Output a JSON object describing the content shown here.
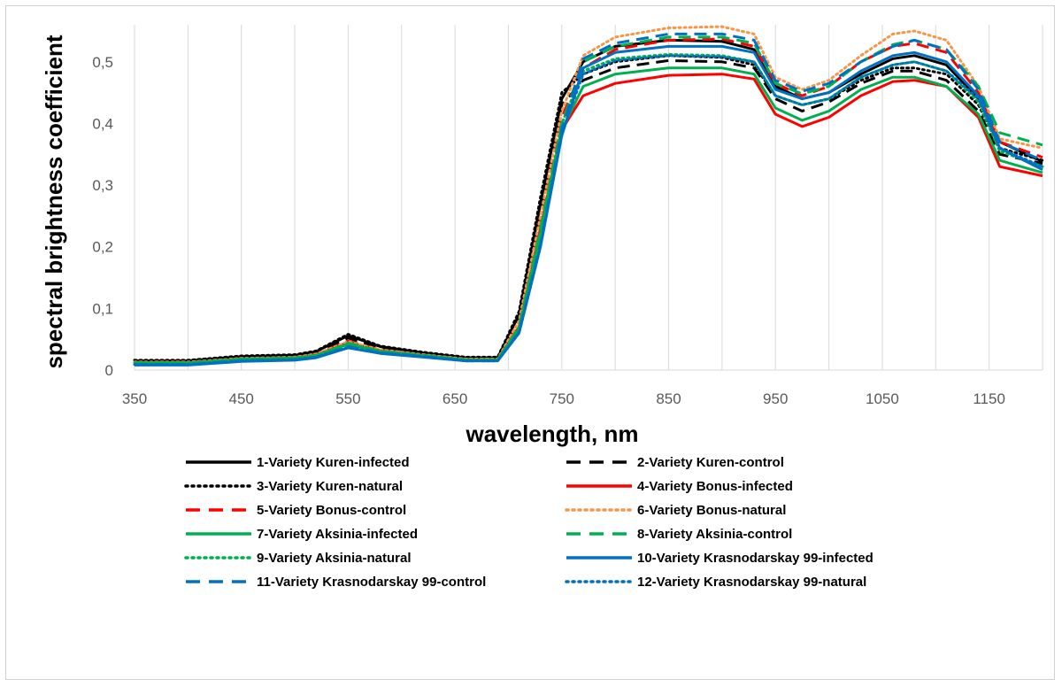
{
  "chart_data": {
    "type": "line",
    "xlabel": "wavelength, nm",
    "ylabel": "spectral brightness coefficient",
    "xlim": [
      350,
      1200
    ],
    "ylim": [
      0,
      0.56
    ],
    "x_ticks": [
      "350",
      "450",
      "550",
      "650",
      "750",
      "850",
      "950",
      "1050",
      "1150"
    ],
    "x_tick_values": [
      350,
      450,
      550,
      650,
      750,
      850,
      950,
      1050,
      1150
    ],
    "y_ticks": [
      "0",
      "0,1",
      "0,2",
      "0,3",
      "0,4",
      "0,5"
    ],
    "y_tick_values": [
      0,
      0.1,
      0.2,
      0.3,
      0.4,
      0.5
    ],
    "grid": "vertical",
    "legend_position": "bottom",
    "x": [
      350,
      400,
      450,
      500,
      520,
      550,
      580,
      620,
      660,
      690,
      710,
      730,
      750,
      770,
      800,
      850,
      900,
      930,
      950,
      975,
      1000,
      1030,
      1060,
      1080,
      1110,
      1140,
      1160,
      1200
    ],
    "series": [
      {
        "name": "1-Variety Kuren-infected",
        "color": "#000000",
        "dash": "solid",
        "values": [
          0.015,
          0.015,
          0.022,
          0.024,
          0.03,
          0.056,
          0.038,
          0.028,
          0.02,
          0.02,
          0.09,
          0.27,
          0.44,
          0.5,
          0.525,
          0.535,
          0.533,
          0.52,
          0.46,
          0.44,
          0.45,
          0.48,
          0.505,
          0.51,
          0.495,
          0.44,
          0.37,
          0.338
        ]
      },
      {
        "name": "2-Variety Kuren-control",
        "color": "#000000",
        "dash": "dash",
        "values": [
          0.014,
          0.014,
          0.021,
          0.023,
          0.029,
          0.052,
          0.036,
          0.027,
          0.019,
          0.019,
          0.085,
          0.26,
          0.43,
          0.47,
          0.49,
          0.502,
          0.5,
          0.49,
          0.44,
          0.42,
          0.435,
          0.465,
          0.485,
          0.485,
          0.47,
          0.42,
          0.35,
          0.335
        ]
      },
      {
        "name": "3-Variety Kuren-natural",
        "color": "#000000",
        "dash": "dot",
        "values": [
          0.016,
          0.016,
          0.023,
          0.025,
          0.031,
          0.058,
          0.039,
          0.029,
          0.021,
          0.021,
          0.095,
          0.28,
          0.45,
          0.48,
          0.5,
          0.51,
          0.507,
          0.495,
          0.445,
          0.43,
          0.44,
          0.47,
          0.49,
          0.49,
          0.48,
          0.43,
          0.36,
          0.34
        ]
      },
      {
        "name": "4-Variety Bonus-infected",
        "color": "#ff0000",
        "dash": "solid",
        "values": [
          0.012,
          0.012,
          0.018,
          0.02,
          0.025,
          0.045,
          0.032,
          0.024,
          0.017,
          0.017,
          0.07,
          0.23,
          0.39,
          0.445,
          0.465,
          0.478,
          0.48,
          0.472,
          0.415,
          0.395,
          0.41,
          0.445,
          0.468,
          0.47,
          0.46,
          0.41,
          0.33,
          0.315
        ]
      },
      {
        "name": "5-Variety Bonus-control",
        "color": "#ff0000",
        "dash": "dash",
        "values": [
          0.013,
          0.013,
          0.019,
          0.021,
          0.026,
          0.047,
          0.033,
          0.025,
          0.018,
          0.018,
          0.075,
          0.24,
          0.41,
          0.49,
          0.52,
          0.535,
          0.537,
          0.525,
          0.465,
          0.445,
          0.46,
          0.5,
          0.525,
          0.53,
          0.515,
          0.45,
          0.37,
          0.345
        ]
      },
      {
        "name": "6-Variety Bonus-natural",
        "color": "#f79646",
        "dash": "dot",
        "values": [
          0.013,
          0.013,
          0.019,
          0.021,
          0.026,
          0.046,
          0.033,
          0.025,
          0.018,
          0.018,
          0.08,
          0.25,
          0.42,
          0.51,
          0.54,
          0.555,
          0.557,
          0.545,
          0.475,
          0.455,
          0.47,
          0.51,
          0.545,
          0.55,
          0.535,
          0.46,
          0.375,
          0.36
        ]
      },
      {
        "name": "7-Variety Aksinia-infected",
        "color": "#00b050",
        "dash": "solid",
        "values": [
          0.011,
          0.011,
          0.017,
          0.019,
          0.023,
          0.042,
          0.03,
          0.023,
          0.016,
          0.016,
          0.065,
          0.22,
          0.39,
          0.46,
          0.48,
          0.49,
          0.49,
          0.48,
          0.425,
          0.405,
          0.42,
          0.455,
          0.475,
          0.475,
          0.46,
          0.415,
          0.34,
          0.32
        ]
      },
      {
        "name": "8-Variety Aksinia-control",
        "color": "#00b050",
        "dash": "dash",
        "values": [
          0.012,
          0.012,
          0.018,
          0.02,
          0.024,
          0.044,
          0.031,
          0.024,
          0.017,
          0.017,
          0.07,
          0.23,
          0.4,
          0.5,
          0.525,
          0.54,
          0.54,
          0.53,
          0.465,
          0.448,
          0.46,
          0.5,
          0.528,
          0.535,
          0.52,
          0.46,
          0.385,
          0.365
        ]
      },
      {
        "name": "9-Variety Aksinia-natural",
        "color": "#00b050",
        "dash": "dot",
        "values": [
          0.012,
          0.012,
          0.018,
          0.02,
          0.024,
          0.043,
          0.031,
          0.024,
          0.017,
          0.017,
          0.07,
          0.225,
          0.4,
          0.485,
          0.505,
          0.512,
          0.51,
          0.5,
          0.445,
          0.43,
          0.44,
          0.475,
          0.495,
          0.5,
          0.485,
          0.435,
          0.355,
          0.33
        ]
      },
      {
        "name": "10-Variety Krasnodarskay 99-infected",
        "color": "#0070c0",
        "dash": "solid",
        "values": [
          0.008,
          0.008,
          0.014,
          0.016,
          0.02,
          0.036,
          0.027,
          0.021,
          0.015,
          0.015,
          0.06,
          0.2,
          0.38,
          0.49,
          0.515,
          0.525,
          0.525,
          0.515,
          0.455,
          0.44,
          0.45,
          0.485,
          0.51,
          0.515,
          0.5,
          0.445,
          0.36,
          0.325
        ]
      },
      {
        "name": "11-Variety Krasnodarskay 99-control",
        "color": "#0070c0",
        "dash": "dash",
        "values": [
          0.009,
          0.009,
          0.015,
          0.017,
          0.021,
          0.038,
          0.028,
          0.022,
          0.015,
          0.015,
          0.062,
          0.205,
          0.39,
          0.505,
          0.53,
          0.545,
          0.545,
          0.535,
          0.47,
          0.452,
          0.465,
          0.5,
          0.525,
          0.535,
          0.52,
          0.455,
          0.37,
          0.34
        ]
      },
      {
        "name": "12-Variety Krasnodarskay 99-natural",
        "color": "#0070c0",
        "dash": "dot",
        "values": [
          0.009,
          0.009,
          0.015,
          0.017,
          0.021,
          0.037,
          0.028,
          0.022,
          0.015,
          0.015,
          0.06,
          0.2,
          0.385,
          0.48,
          0.502,
          0.51,
          0.508,
          0.5,
          0.445,
          0.43,
          0.44,
          0.475,
          0.495,
          0.5,
          0.485,
          0.44,
          0.36,
          0.33
        ]
      }
    ]
  }
}
